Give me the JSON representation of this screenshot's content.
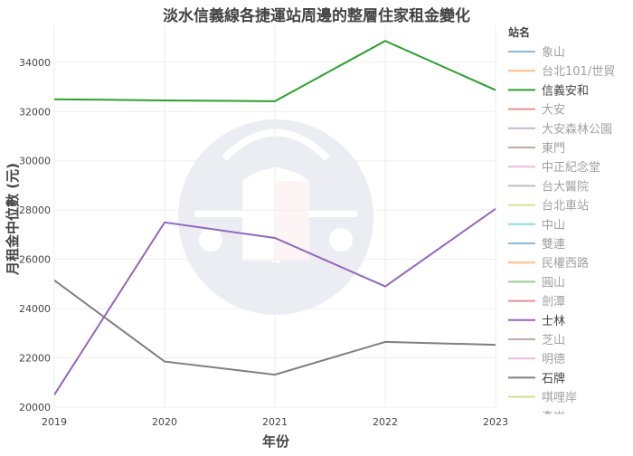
{
  "chart_data": {
    "type": "line",
    "title": "淡水信義線各捷運站周邊的整層住家租金變化",
    "xlabel": "年份",
    "ylabel": "月租金中位數 (元)",
    "x": [
      "2019",
      "2020",
      "2021",
      "2022",
      "2023"
    ],
    "yticks": [
      "20000",
      "22000",
      "24000",
      "26000",
      "28000",
      "30000",
      "32000",
      "34000"
    ],
    "ylim": [
      20000,
      35500
    ],
    "grid": true,
    "legend_title": "站名",
    "legend_placement": "right",
    "series": [
      {
        "name": "象山",
        "color": "#1f77b4",
        "active": false
      },
      {
        "name": "台北101/世貿",
        "color": "#ff7f0e",
        "active": false
      },
      {
        "name": "信義安和",
        "color": "#2ca02c",
        "active": true,
        "values": [
          32500,
          32450,
          32420,
          34870,
          32870
        ]
      },
      {
        "name": "大安",
        "color": "#d62728",
        "active": false
      },
      {
        "name": "大安森林公園",
        "color": "#9467bd",
        "active": false
      },
      {
        "name": "東門",
        "color": "#8c564b",
        "active": false
      },
      {
        "name": "中正紀念堂",
        "color": "#e377c2",
        "active": false
      },
      {
        "name": "台大醫院",
        "color": "#7f7f7f",
        "active": false
      },
      {
        "name": "台北車站",
        "color": "#bcbd22",
        "active": false
      },
      {
        "name": "中山",
        "color": "#17becf",
        "active": false
      },
      {
        "name": "雙連",
        "color": "#1f77b4",
        "active": false
      },
      {
        "name": "民權西路",
        "color": "#ff7f0e",
        "active": false
      },
      {
        "name": "圓山",
        "color": "#2ca02c",
        "active": false
      },
      {
        "name": "劍潭",
        "color": "#d62728",
        "active": false
      },
      {
        "name": "士林",
        "color": "#9467bd",
        "active": true,
        "values": [
          20500,
          27500,
          26870,
          24900,
          28050
        ]
      },
      {
        "name": "芝山",
        "color": "#8c564b",
        "active": false
      },
      {
        "name": "明德",
        "color": "#e377c2",
        "active": false
      },
      {
        "name": "石牌",
        "color": "#7f7f7f",
        "active": true,
        "values": [
          25150,
          21850,
          21320,
          22650,
          22530
        ]
      },
      {
        "name": "唭哩岸",
        "color": "#bcbd22",
        "active": false
      },
      {
        "name": "奇岩",
        "color": "#17becf",
        "active": false
      }
    ]
  }
}
